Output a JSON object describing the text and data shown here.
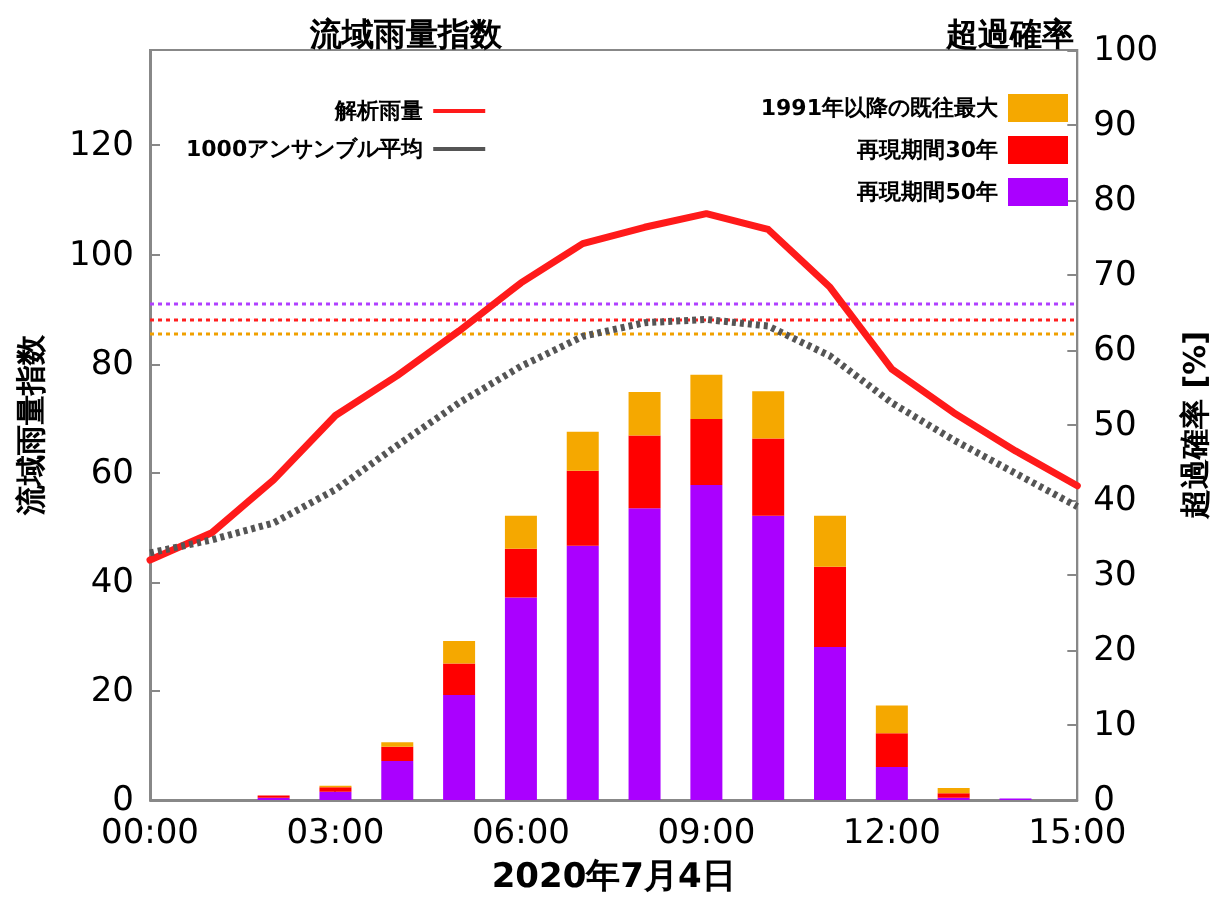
{
  "chart_data": {
    "type": "bar",
    "xlabel": "2020年7月4日",
    "ylabel": "流域雨量指数",
    "y2label": "超過確率 [%]",
    "annotations": [
      "流域雨量指数",
      "超過確率"
    ],
    "xlim": [
      0,
      15
    ],
    "xticks": [
      {
        "value": 0,
        "label": "00:00"
      },
      {
        "value": 3,
        "label": "03:00"
      },
      {
        "value": 6,
        "label": "06:00"
      },
      {
        "value": 9,
        "label": "09:00"
      },
      {
        "value": 12,
        "label": "12:00"
      },
      {
        "value": 15,
        "label": "15:00"
      }
    ],
    "ylim": [
      0,
      137.5
    ],
    "yticks": [
      0,
      20,
      40,
      60,
      80,
      100,
      120
    ],
    "y2lim": [
      0,
      100
    ],
    "y2ticks": [
      0,
      10,
      20,
      30,
      40,
      50,
      60,
      70,
      80,
      90,
      100
    ],
    "stacked": true,
    "legend": "top",
    "grid": false,
    "marker": "none",
    "series": [
      {
        "name": "再現期間50年",
        "axis": "y2",
        "color": "#aa00ff",
        "x": [
          2,
          3,
          4,
          5,
          6,
          7,
          8,
          9,
          10,
          11,
          12,
          13,
          14
        ],
        "values": [
          0.3,
          1.1,
          5.2,
          14,
          27,
          33.9,
          38.9,
          42,
          37.9,
          20.4,
          4.4,
          0.3,
          0.2
        ]
      },
      {
        "name": "再現期間30年",
        "axis": "y2",
        "color": "#ff0000",
        "x": [
          2,
          3,
          4,
          5,
          6,
          7,
          8,
          9,
          10,
          11,
          12,
          13,
          14
        ],
        "values": [
          0.3,
          0.6,
          1.9,
          4.2,
          6.5,
          10,
          9.7,
          8.8,
          10.3,
          10.7,
          4.5,
          0.6,
          0
        ]
      },
      {
        "name": "1991年以降の既往最大",
        "axis": "y2",
        "color": "#f5a800",
        "x": [
          2,
          3,
          4,
          5,
          6,
          7,
          8,
          9,
          10,
          11,
          12,
          13,
          14
        ],
        "values": [
          0,
          0.2,
          0.6,
          3,
          4.4,
          5.2,
          5.8,
          5.9,
          6.3,
          6.8,
          3.7,
          0.7,
          0
        ]
      },
      {
        "name": "解析雨量",
        "type": "line",
        "color": "#ff1a1a",
        "line_style": "solid",
        "x": [
          0,
          1,
          2,
          3,
          4,
          5,
          6,
          7,
          8,
          9,
          10,
          11,
          12,
          13,
          14,
          15
        ],
        "values": [
          44,
          49,
          58.7,
          70.5,
          77.8,
          86,
          94.8,
          102,
          105,
          107.5,
          104.6,
          94,
          79,
          71,
          64,
          57.6
        ]
      },
      {
        "name": "1000アンサンブル平均",
        "type": "line",
        "color": "#555555",
        "line_style": "dotted",
        "x": [
          0,
          1,
          2,
          3,
          4,
          5,
          6,
          7,
          8,
          9,
          10,
          11,
          12,
          13,
          14,
          15
        ],
        "values": [
          45.3,
          47.7,
          50.8,
          56.9,
          65,
          72.8,
          79.5,
          85,
          87.5,
          88.1,
          86.9,
          81.4,
          72.8,
          66,
          59.9,
          53.8
        ]
      }
    ],
    "ref_lines": [
      {
        "axis": "y",
        "value": 91,
        "color": "#b040ff",
        "line_style": "dotted"
      },
      {
        "axis": "y",
        "value": 88,
        "color": "#ff2020",
        "line_style": "dotted"
      },
      {
        "axis": "y",
        "value": 85.6,
        "color": "#f0a000",
        "line_style": "dotted"
      }
    ]
  }
}
